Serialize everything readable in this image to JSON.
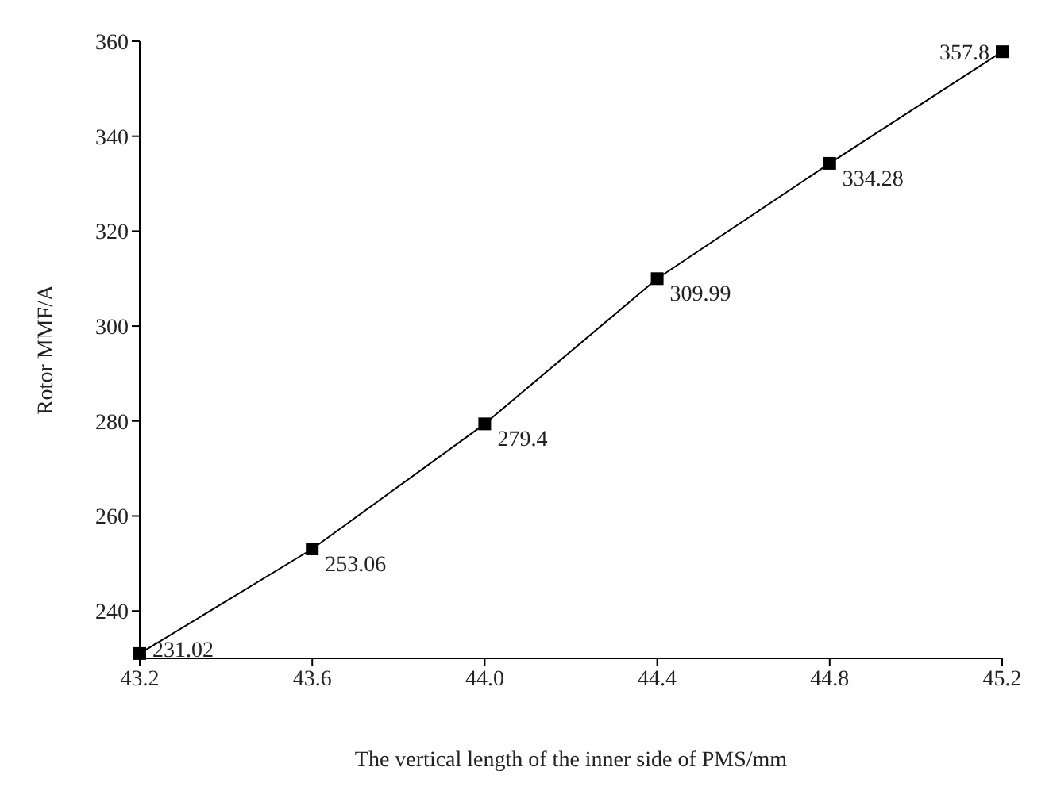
{
  "chart_data": {
    "type": "line",
    "xlabel": "The vertical length of the inner side of PMS/mm",
    "ylabel": "Rotor MMF/A",
    "x": [
      43.2,
      43.6,
      44.0,
      44.4,
      44.8,
      45.2
    ],
    "series": [
      {
        "color": "#000000",
        "values": [
          231.02,
          253.06,
          279.4,
          309.99,
          334.28,
          357.8
        ]
      }
    ],
    "xlim": [
      43.2,
      45.2
    ],
    "xticks": [
      43.2,
      43.6,
      {
        "value": 44.0,
        "label": "44.0"
      },
      44.4,
      44.8,
      45.2
    ],
    "ylim": [
      230,
      360
    ],
    "yticks": [
      240,
      260,
      280,
      300,
      320,
      340,
      360
    ],
    "data_labels": true,
    "marker": "square",
    "line_style": "solid",
    "grid": false,
    "legend": false
  }
}
